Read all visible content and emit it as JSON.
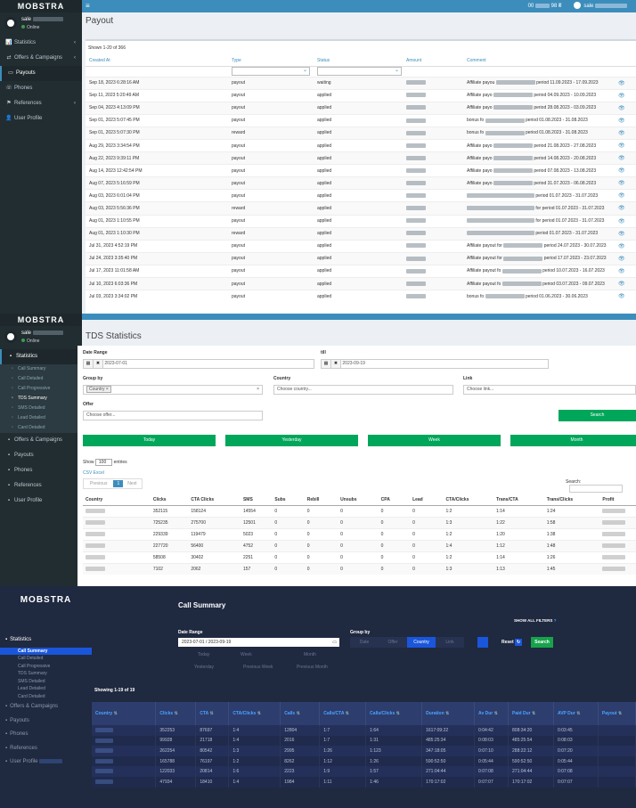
{
  "payout": {
    "logo": "MOBSTRA",
    "user_prefix": "sale",
    "online": "Online",
    "balance_prefix": "00",
    "balance_suffix": "98 ₴",
    "top_user": "sale",
    "title": "Payout",
    "shown": "Shown 1-20 of 366",
    "menu": [
      {
        "label": "Statistics",
        "icon": "📊"
      },
      {
        "label": "Offers & Campaigns",
        "icon": "⇄"
      },
      {
        "label": "Payouts",
        "icon": "▭",
        "active": true
      },
      {
        "label": "Phones",
        "icon": "☏"
      },
      {
        "label": "References",
        "icon": "⚑"
      },
      {
        "label": "User Profile",
        "icon": "👤"
      }
    ],
    "headers": [
      "Created At",
      "Type",
      "Status",
      "Amount",
      "Comment"
    ],
    "rows": [
      [
        "Sep 18, 2023 6:28:16 AM",
        "payout",
        "waiting",
        "Affiliate payou",
        "period 11.09.2023 - 17.09.2023"
      ],
      [
        "Sep 11, 2023 5:20:49 AM",
        "payout",
        "applied",
        "Affiliate payo",
        "period 04.09.2023 - 10.09.2023"
      ],
      [
        "Sep 04, 2023 4:13:09 PM",
        "payout",
        "applied",
        "Affiliate payo",
        "period 28.08.2023 - 03.09.2023"
      ],
      [
        "Sep 01, 2023 5:07:45 PM",
        "payout",
        "applied",
        "bonus fo",
        "period 01.08.2023 - 31.08.2023"
      ],
      [
        "Sep 01, 2023 5:07:30 PM",
        "reward",
        "applied",
        "bonus fo",
        "period 01.08.2023 - 31.08.2023"
      ],
      [
        "Aug 29, 2023 3:34:54 PM",
        "payout",
        "applied",
        "Affiliate payo",
        "period 21.08.2023 - 27.08.2023"
      ],
      [
        "Aug 22, 2023 9:39:11 PM",
        "payout",
        "applied",
        "Affiliate payo",
        "period 14.08.2023 - 20.08.2023"
      ],
      [
        "Aug 14, 2023 12:42:54 PM",
        "payout",
        "applied",
        "Affiliate payo",
        "period 07.08.2023 - 13.08.2023"
      ],
      [
        "Aug 07, 2023 5:16:59 PM",
        "payout",
        "applied",
        "Affiliate payo",
        "period 31.07.2023 - 06.08.2023"
      ],
      [
        "Aug 03, 2023 6:01:04 PM",
        "payout",
        "applied",
        "",
        "period 01.07.2023 - 31.07.2023"
      ],
      [
        "Aug 03, 2023 5:56:36 PM",
        "reward",
        "applied",
        "",
        "for period 01.07.2023 - 31.07.2023"
      ],
      [
        "Aug 01, 2023 1:10:55 PM",
        "payout",
        "applied",
        "",
        "for period 01.07.2023 - 31.07.2023"
      ],
      [
        "Aug 01, 2023 1:10:30 PM",
        "reward",
        "applied",
        "",
        "period 01.07.2023 - 31.07.2023"
      ],
      [
        "Jul 31, 2023 4:52:19 PM",
        "payout",
        "applied",
        "Affiliate payout for",
        "period 24.07.2023 - 30.07.2023"
      ],
      [
        "Jul 24, 2023 3:35:40 PM",
        "payout",
        "applied",
        "Affiliate payout for",
        "period 17.07.2023 - 23.07.2023"
      ],
      [
        "Jul 17, 2023 11:01:58 AM",
        "payout",
        "applied",
        "Affiliate payout fo",
        "period 10.07.2023 - 16.07.2023"
      ],
      [
        "Jul 10, 2023 6:03:36 PM",
        "payout",
        "applied",
        "Affiliate payout fo",
        "period 03.07.2023 - 09.07.2023"
      ],
      [
        "Jul 03, 2023 3:34:02 PM",
        "payout",
        "applied",
        "bonus fo",
        "period 01.06.2023 - 30.06.2023"
      ]
    ]
  },
  "tds": {
    "title": "TDS Statistics",
    "online": "Online",
    "menu": [
      {
        "label": "Statistics",
        "active": true
      },
      {
        "label": "Call Summary",
        "sub": true
      },
      {
        "label": "Call Detailed",
        "sub": true
      },
      {
        "label": "Call Progressive",
        "sub": true
      },
      {
        "label": "TDS Summary",
        "sub": true,
        "active": true
      },
      {
        "label": "SMS Detailed",
        "sub": true
      },
      {
        "label": "Lead Detailed",
        "sub": true
      },
      {
        "label": "Card Detailed",
        "sub": true
      },
      {
        "label": "Offers & Campaigns"
      },
      {
        "label": "Payouts"
      },
      {
        "label": "Phones"
      },
      {
        "label": "References"
      },
      {
        "label": "User Profile"
      }
    ],
    "date_range_label": "Date Range",
    "till_label": "till",
    "date_from": "2023-07-01",
    "date_to": "2023-09-19",
    "group_by_label": "Group by",
    "group_tag": "Country",
    "country_label": "Country",
    "country_placeholder": "Choose country...",
    "link_label": "Link",
    "link_placeholder": "Choose link...",
    "offer_label": "Offer",
    "offer_placeholder": "Choose offer...",
    "search_btn": "Search",
    "quick": [
      "Today",
      "Yesterday",
      "Week",
      "Month"
    ],
    "show": "Show",
    "entries_val": "100",
    "entries": "entries",
    "csv": "CSV Excel",
    "prev": "Previous",
    "page": "1",
    "next": "Next",
    "search_label": "Search:",
    "headers": [
      "Country",
      "Clicks",
      "CTA Clicks",
      "SMS",
      "Subs",
      "Rebill",
      "Unsubs",
      "CPA",
      "Lead",
      "CTA/Clicks",
      "Trans/CTA",
      "Trans/Clicks",
      "Profit"
    ],
    "rows": [
      [
        "352115",
        "158124",
        "14554",
        "0",
        "0",
        "0",
        "0",
        "0",
        "1:2",
        "1:14",
        "1:24"
      ],
      [
        "725235",
        "275700",
        "12501",
        "0",
        "0",
        "0",
        "0",
        "0",
        "1:3",
        "1:22",
        "1:58"
      ],
      [
        "229339",
        "119479",
        "5023",
        "0",
        "0",
        "0",
        "0",
        "0",
        "1:2",
        "1:20",
        "1:38"
      ],
      [
        "227720",
        "56400",
        "4752",
        "0",
        "0",
        "0",
        "0",
        "0",
        "1:4",
        "1:12",
        "1:48"
      ],
      [
        "58508",
        "30402",
        "2251",
        "0",
        "0",
        "0",
        "0",
        "0",
        "1:2",
        "1:14",
        "1:26"
      ],
      [
        "7102",
        "2062",
        "157",
        "0",
        "0",
        "0",
        "0",
        "0",
        "1:3",
        "1:13",
        "1:45"
      ]
    ]
  },
  "calls": {
    "logo": "MOBSTRA",
    "title": "Call Summary",
    "show_all": "SHOW ALL FILTERS",
    "date_range_label": "Date Range",
    "date_value": "2023-07-01 / 2023-09-19",
    "group_by_label": "Group by",
    "group_opts": [
      "Date",
      "Offer",
      "Country",
      "Link"
    ],
    "reset": "Reset",
    "search": "Search",
    "quick": [
      "Today",
      "Week",
      "Month",
      "Yesterday",
      "Previous Week",
      "Previous Month"
    ],
    "showing": "Showing 1-19 of 19",
    "menu": [
      "Statistics",
      "Offers & Campaigns",
      "Payouts",
      "Phones",
      "References",
      "User Profile"
    ],
    "submenu": [
      "Call Summary",
      "Call Detailed",
      "Call Progressive",
      "TDS Summary",
      "SMS Detailed",
      "Lead Detailed",
      "Card Detailed"
    ],
    "headers": [
      "Country",
      "Clicks",
      "CTA",
      "CTA/Clicks",
      "Calls",
      "Calls/CTA",
      "Calls/Clicks",
      "Duration",
      "Av Dur",
      "Paid Dur",
      "AVP Dur",
      "Payout"
    ],
    "rows": [
      [
        "352253",
        "87697",
        "1:4",
        "12804",
        "1:7",
        "1:64",
        "1617:09:22",
        "0:04:42",
        "808:34:20",
        "0:03:45"
      ],
      [
        "99928",
        "21718",
        "1:4",
        "2016",
        "1:7",
        "1:31",
        "485:25:34",
        "0:08:03",
        "485:25:54",
        "0:08:03"
      ],
      [
        "262254",
        "80542",
        "1:3",
        "2995",
        "1:26",
        "1:123",
        "347:18:05",
        "0:07:10",
        "288:22:12",
        "0:07:20"
      ],
      [
        "165788",
        "76197",
        "1:2",
        "8262",
        "1:12",
        "1:26",
        "590:52:50",
        "0:05:44",
        "590:52:50",
        "0:05:44"
      ],
      [
        "122033",
        "20814",
        "1:6",
        "2223",
        "1:9",
        "1:57",
        "271:04:44",
        "0:07:08",
        "271:04:44",
        "0:07:08"
      ],
      [
        "47934",
        "18410",
        "1:4",
        "1984",
        "1:11",
        "1:46",
        "170:17:02",
        "0:07:07",
        "170:17:02",
        "0:07:07"
      ]
    ]
  }
}
